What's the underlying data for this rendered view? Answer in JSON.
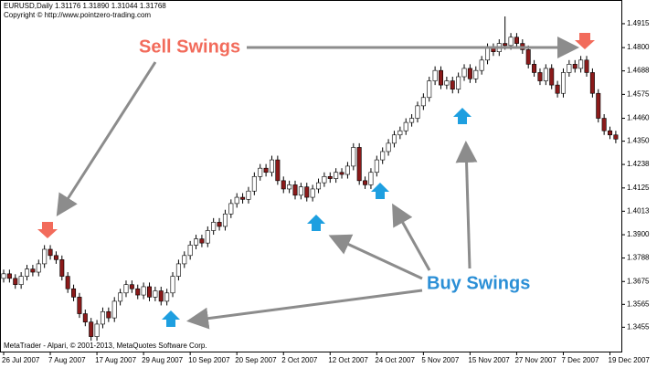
{
  "chart_data": {
    "type": "candlestick",
    "title": "EURUSD,Daily  1.31176 1.31890 1.31044 1.31768",
    "subtitle": "Copyright © http://www.pointzero-trading.com",
    "footer": "MetaTrader  - Alpari, © 2001-2013, MetaQuotes Software Corp.",
    "annotations": [
      "Sell Swings",
      "Buy Swings"
    ],
    "up_color": "#ffffff",
    "down_color": "#8b1a1a",
    "categories": [
      "26 Jul 2007",
      null,
      null,
      null,
      null,
      null,
      null,
      null,
      "7 Aug 2007",
      null,
      null,
      null,
      null,
      null,
      null,
      null,
      "17 Aug 2007",
      null,
      null,
      null,
      null,
      null,
      null,
      null,
      "29 Aug 2007",
      null,
      null,
      null,
      null,
      null,
      null,
      null,
      "10 Sep 2007",
      null,
      null,
      null,
      null,
      null,
      null,
      null,
      "20 Sep 2007",
      null,
      null,
      null,
      null,
      null,
      null,
      null,
      "2 Oct 2007",
      null,
      null,
      null,
      null,
      null,
      null,
      null,
      "12 Oct 2007",
      null,
      null,
      null,
      null,
      null,
      null,
      null,
      "24 Oct 2007",
      null,
      null,
      null,
      null,
      null,
      null,
      null,
      "5 Nov 2007",
      null,
      null,
      null,
      null,
      null,
      null,
      null,
      "15 Nov 2007",
      null,
      null,
      null,
      null,
      null,
      null,
      null,
      "27 Nov 2007",
      null,
      null,
      null,
      null,
      null,
      null,
      null,
      "7 Dec 2007",
      null,
      null,
      null,
      null,
      null,
      null,
      null,
      "19 Dec 2007",
      null
    ],
    "open": [
      1.369,
      1.3712,
      1.369,
      1.366,
      1.37,
      1.3735,
      1.372,
      1.376,
      1.383,
      1.38,
      1.378,
      1.37,
      1.364,
      1.36,
      1.352,
      1.348,
      1.341,
      1.347,
      1.353,
      1.35,
      1.358,
      1.362,
      1.366,
      1.364,
      1.361,
      1.365,
      1.36,
      1.363,
      1.358,
      1.362,
      1.37,
      1.376,
      1.38,
      1.385,
      1.388,
      1.386,
      1.392,
      1.396,
      1.394,
      1.4,
      1.405,
      1.408,
      1.407,
      1.411,
      1.418,
      1.422,
      1.42,
      1.426,
      1.416,
      1.412,
      1.414,
      1.409,
      1.413,
      1.408,
      1.412,
      1.415,
      1.418,
      1.417,
      1.42,
      1.419,
      1.423,
      1.432,
      1.416,
      1.414,
      1.42,
      1.426,
      1.43,
      1.434,
      1.438,
      1.44,
      1.444,
      1.446,
      1.452,
      1.456,
      1.464,
      1.469,
      1.462,
      1.464,
      1.46,
      1.466,
      1.47,
      1.465,
      1.469,
      1.474,
      1.48,
      1.478,
      1.482,
      1.481,
      1.485,
      1.482,
      1.479,
      1.472,
      1.468,
      1.464,
      1.47,
      1.462,
      1.458,
      1.468,
      1.472,
      1.47,
      1.474,
      1.468,
      1.458,
      1.446,
      1.44,
      1.438
    ],
    "high": [
      1.3732,
      1.3732,
      1.371,
      1.372,
      1.3755,
      1.3755,
      1.378,
      1.385,
      1.385,
      1.382,
      1.38,
      1.372,
      1.366,
      1.362,
      1.354,
      1.35,
      1.349,
      1.355,
      1.355,
      1.36,
      1.364,
      1.368,
      1.368,
      1.366,
      1.367,
      1.367,
      1.365,
      1.365,
      1.364,
      1.372,
      1.378,
      1.382,
      1.387,
      1.39,
      1.39,
      1.394,
      1.398,
      1.398,
      1.402,
      1.407,
      1.41,
      1.41,
      1.413,
      1.42,
      1.424,
      1.424,
      1.428,
      1.428,
      1.418,
      1.416,
      1.416,
      1.415,
      1.415,
      1.414,
      1.417,
      1.42,
      1.42,
      1.422,
      1.422,
      1.425,
      1.434,
      1.434,
      1.418,
      1.422,
      1.428,
      1.432,
      1.436,
      1.44,
      1.442,
      1.446,
      1.448,
      1.454,
      1.458,
      1.466,
      1.471,
      1.471,
      1.466,
      1.466,
      1.468,
      1.472,
      1.472,
      1.471,
      1.476,
      1.482,
      1.482,
      1.484,
      1.495,
      1.487,
      1.487,
      1.484,
      1.481,
      1.474,
      1.47,
      1.472,
      1.472,
      1.464,
      1.47,
      1.474,
      1.474,
      1.476,
      1.476,
      1.47,
      1.46,
      1.448,
      1.442,
      1.44
    ],
    "low": [
      1.367,
      1.367,
      1.364,
      1.364,
      1.368,
      1.37,
      1.37,
      1.374,
      1.378,
      1.376,
      1.368,
      1.362,
      1.358,
      1.35,
      1.346,
      1.339,
      1.339,
      1.345,
      1.348,
      1.348,
      1.356,
      1.36,
      1.362,
      1.359,
      1.359,
      1.358,
      1.358,
      1.356,
      1.356,
      1.36,
      1.368,
      1.374,
      1.378,
      1.383,
      1.384,
      1.384,
      1.39,
      1.392,
      1.392,
      1.398,
      1.403,
      1.405,
      1.405,
      1.409,
      1.416,
      1.418,
      1.418,
      1.414,
      1.41,
      1.41,
      1.407,
      1.407,
      1.406,
      1.406,
      1.41,
      1.413,
      1.415,
      1.415,
      1.417,
      1.417,
      1.421,
      1.414,
      1.412,
      1.412,
      1.418,
      1.424,
      1.428,
      1.432,
      1.436,
      1.438,
      1.442,
      1.444,
      1.45,
      1.454,
      1.462,
      1.46,
      1.46,
      1.458,
      1.458,
      1.464,
      1.463,
      1.463,
      1.467,
      1.472,
      1.476,
      1.476,
      1.479,
      1.479,
      1.48,
      1.477,
      1.47,
      1.466,
      1.462,
      1.462,
      1.46,
      1.456,
      1.456,
      1.466,
      1.468,
      1.468,
      1.466,
      1.456,
      1.444,
      1.438,
      1.436,
      1.434
    ],
    "close": [
      1.3712,
      1.369,
      1.366,
      1.37,
      1.3735,
      1.372,
      1.376,
      1.383,
      1.38,
      1.378,
      1.37,
      1.364,
      1.36,
      1.352,
      1.348,
      1.341,
      1.347,
      1.353,
      1.35,
      1.358,
      1.362,
      1.366,
      1.364,
      1.361,
      1.365,
      1.36,
      1.363,
      1.358,
      1.362,
      1.37,
      1.376,
      1.38,
      1.385,
      1.388,
      1.386,
      1.392,
      1.396,
      1.394,
      1.4,
      1.405,
      1.408,
      1.407,
      1.411,
      1.418,
      1.422,
      1.42,
      1.426,
      1.416,
      1.412,
      1.414,
      1.409,
      1.413,
      1.408,
      1.412,
      1.415,
      1.418,
      1.417,
      1.42,
      1.419,
      1.423,
      1.432,
      1.416,
      1.414,
      1.42,
      1.426,
      1.43,
      1.434,
      1.438,
      1.44,
      1.444,
      1.446,
      1.452,
      1.456,
      1.464,
      1.469,
      1.462,
      1.464,
      1.46,
      1.466,
      1.47,
      1.465,
      1.469,
      1.474,
      1.48,
      1.478,
      1.482,
      1.481,
      1.485,
      1.482,
      1.479,
      1.472,
      1.468,
      1.464,
      1.47,
      1.462,
      1.458,
      1.468,
      1.472,
      1.47,
      1.474,
      1.468,
      1.458,
      1.446,
      1.44,
      1.438,
      1.436
    ],
    "ylim": [
      1.3338,
      1.5029
    ],
    "yticks": [
      1.4915,
      {
        "value": 1.48,
        "label": "1.4800"
      },
      1.4688,
      1.4575,
      {
        "value": 1.446,
        "label": "1.4460"
      },
      {
        "value": 1.435,
        "label": "1.4350"
      },
      1.4238,
      1.4125,
      1.4013,
      {
        "value": 1.39,
        "label": "1.3900"
      },
      1.3788,
      1.3675,
      1.3565,
      1.3455
    ]
  }
}
